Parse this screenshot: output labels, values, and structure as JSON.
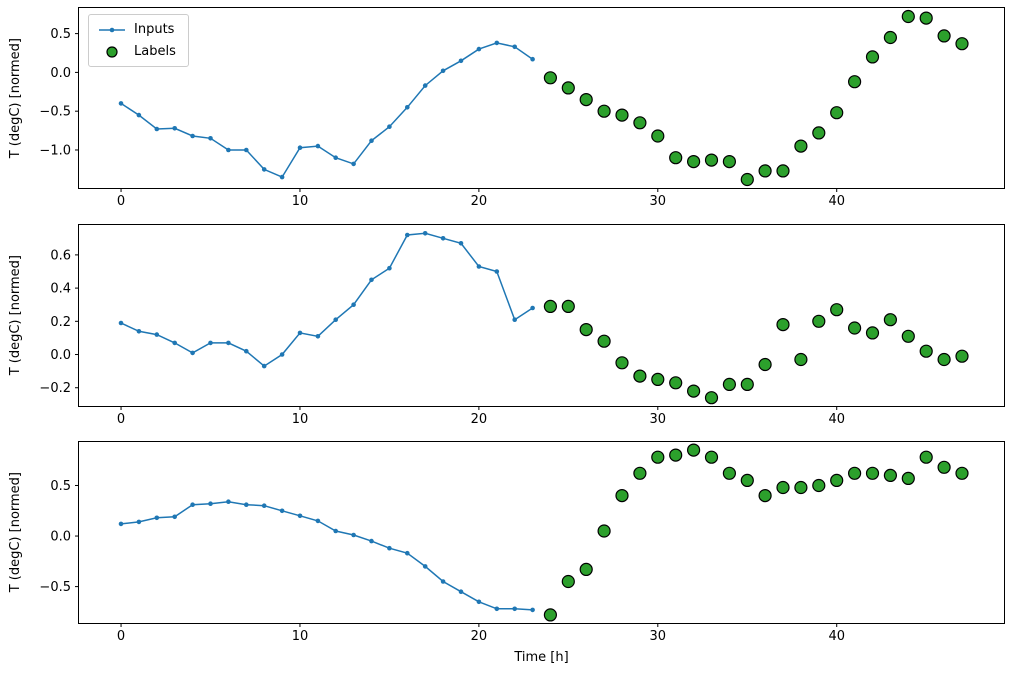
{
  "figure": {
    "legend": {
      "inputs_label": "Inputs",
      "labels_label": "Labels"
    },
    "colors": {
      "inputs": "#1f77b4",
      "labels": "#2ca02c",
      "marker_edge": "#000000"
    }
  },
  "chart_data": [
    {
      "type": "line",
      "title": "",
      "xlabel": "",
      "ylabel": "T (degC) [normed]",
      "xlim": [
        -2.35,
        49.35
      ],
      "ylim": [
        -1.49,
        0.83
      ],
      "xticks": [
        0,
        10,
        20,
        30,
        40
      ],
      "yticks": [
        0.5,
        0.0,
        -0.5,
        -1.0
      ],
      "grid": false,
      "legend_position": "upper left",
      "series": [
        {
          "name": "Inputs",
          "style": "line-marker",
          "x0": 0,
          "values": [
            -0.4,
            -0.55,
            -0.73,
            -0.72,
            -0.82,
            -0.85,
            -1.0,
            -1.0,
            -1.25,
            -1.35,
            -0.97,
            -0.95,
            -1.1,
            -1.18,
            -0.88,
            -0.7,
            -0.45,
            -0.17,
            0.02,
            0.15,
            0.3,
            0.38,
            0.33,
            0.17
          ]
        },
        {
          "name": "Labels",
          "style": "scatter",
          "x0": 24,
          "values": [
            -0.07,
            -0.2,
            -0.35,
            -0.5,
            -0.55,
            -0.65,
            -0.82,
            -1.1,
            -1.15,
            -1.13,
            -1.15,
            -1.38,
            -1.27,
            -1.27,
            -0.95,
            -0.78,
            -0.52,
            -0.12,
            0.2,
            0.45,
            0.72,
            0.7,
            0.47,
            0.37
          ]
        }
      ]
    },
    {
      "type": "line",
      "title": "",
      "xlabel": "",
      "ylabel": "T (degC) [normed]",
      "xlim": [
        -2.35,
        49.35
      ],
      "ylim": [
        -0.31,
        0.78
      ],
      "xticks": [
        0,
        10,
        20,
        30,
        40
      ],
      "yticks": [
        0.6,
        0.4,
        0.2,
        0.0,
        -0.2
      ],
      "grid": false,
      "series": [
        {
          "name": "Inputs",
          "style": "line-marker",
          "x0": 0,
          "values": [
            0.19,
            0.14,
            0.12,
            0.07,
            0.01,
            0.07,
            0.07,
            0.02,
            -0.07,
            0.0,
            0.13,
            0.11,
            0.21,
            0.3,
            0.45,
            0.52,
            0.72,
            0.73,
            0.7,
            0.67,
            0.53,
            0.5,
            0.21,
            0.28
          ]
        },
        {
          "name": "Labels",
          "style": "scatter",
          "x0": 24,
          "values": [
            0.29,
            0.29,
            0.15,
            0.08,
            -0.05,
            -0.13,
            -0.15,
            -0.17,
            -0.22,
            -0.26,
            -0.18,
            -0.18,
            -0.06,
            0.18,
            -0.03,
            0.2,
            0.27,
            0.16,
            0.13,
            0.21,
            0.11,
            0.02,
            -0.03,
            -0.01
          ]
        }
      ]
    },
    {
      "type": "line",
      "title": "",
      "xlabel": "Time [h]",
      "ylabel": "T (degC) [normed]",
      "xlim": [
        -2.35,
        49.35
      ],
      "ylim": [
        -0.86,
        0.93
      ],
      "xticks": [
        0,
        10,
        20,
        30,
        40
      ],
      "yticks": [
        0.5,
        0.0,
        -0.5
      ],
      "grid": false,
      "series": [
        {
          "name": "Inputs",
          "style": "line-marker",
          "x0": 0,
          "values": [
            0.12,
            0.14,
            0.18,
            0.19,
            0.31,
            0.32,
            0.34,
            0.31,
            0.3,
            0.25,
            0.2,
            0.15,
            0.05,
            0.01,
            -0.05,
            -0.12,
            -0.17,
            -0.3,
            -0.45,
            -0.55,
            -0.65,
            -0.72,
            -0.72,
            -0.73
          ]
        },
        {
          "name": "Labels",
          "style": "scatter",
          "x0": 24,
          "values": [
            -0.78,
            -0.45,
            -0.33,
            0.05,
            0.4,
            0.62,
            0.78,
            0.8,
            0.85,
            0.78,
            0.62,
            0.55,
            0.4,
            0.48,
            0.48,
            0.5,
            0.55,
            0.62,
            0.62,
            0.6,
            0.57,
            0.78,
            0.68,
            0.62
          ]
        }
      ]
    }
  ]
}
